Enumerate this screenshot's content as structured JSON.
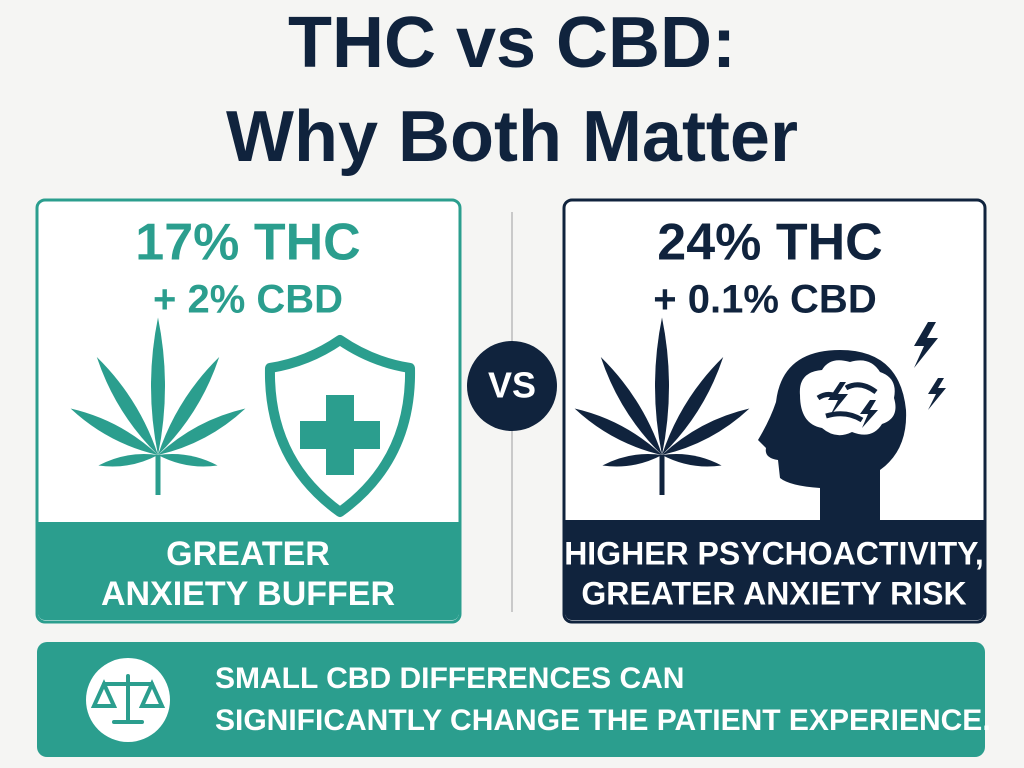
{
  "header": {
    "title_lines": [
      "THC vs CBD:",
      "Why Both Matter"
    ]
  },
  "left_panel": {
    "thc": "17% THC",
    "cbd": "+ 2% CBD",
    "caption_lines": [
      "GREATER",
      "ANXIETY BUFFER"
    ]
  },
  "divider": {
    "label": "VS"
  },
  "right_panel": {
    "thc": "24% THC",
    "cbd": "+ 0.1% CBD",
    "caption_lines": [
      "HIGHER PSYCHOACTIVITY,",
      "GREATER ANXIETY RISK"
    ]
  },
  "footer": {
    "lines": [
      "SMALL CBD DIFFERENCES CAN",
      "SIGNIFICANTLY CHANGE THE PATIENT EXPERIENCE."
    ]
  }
}
